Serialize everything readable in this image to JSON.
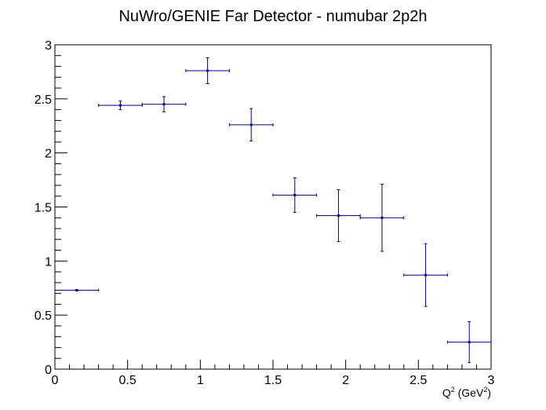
{
  "chart_data": {
    "type": "scatter",
    "title": "NuWro/GENIE Far Detector - numubar 2p2h",
    "xlabel": {
      "base": "Q",
      "sup1": "2",
      "mid": " (GeV",
      "sup2": "2",
      "end": ")"
    },
    "ylabel": "",
    "xlim": [
      0,
      3
    ],
    "ylim": [
      0,
      3
    ],
    "x_ticks": [
      "0",
      "0.5",
      "1",
      "1.5",
      "2",
      "2.5",
      "3"
    ],
    "y_ticks": [
      "0",
      "0.5",
      "1",
      "1.5",
      "2",
      "2.5",
      "3"
    ],
    "grid": false,
    "legend": "none",
    "colors": {
      "marker": "#000080",
      "axis": "#000000"
    },
    "points": [
      {
        "x": 0.15,
        "xerr": 0.15,
        "y": 0.73,
        "yerr": 0.005
      },
      {
        "x": 0.45,
        "xerr": 0.15,
        "y": 2.44,
        "yerr": 0.04
      },
      {
        "x": 0.75,
        "xerr": 0.15,
        "y": 2.45,
        "yerr": 0.07
      },
      {
        "x": 1.05,
        "xerr": 0.15,
        "y": 2.76,
        "yerr": 0.12
      },
      {
        "x": 1.35,
        "xerr": 0.15,
        "y": 2.26,
        "yerr": 0.15
      },
      {
        "x": 1.65,
        "xerr": 0.15,
        "y": 1.61,
        "yerr": 0.16
      },
      {
        "x": 1.95,
        "xerr": 0.15,
        "y": 1.42,
        "yerr": 0.24
      },
      {
        "x": 2.25,
        "xerr": 0.15,
        "y": 1.4,
        "yerr": 0.31
      },
      {
        "x": 2.55,
        "xerr": 0.15,
        "y": 0.87,
        "yerr": 0.29
      },
      {
        "x": 2.85,
        "xerr": 0.15,
        "y": 0.25,
        "yerr": 0.19
      }
    ]
  }
}
